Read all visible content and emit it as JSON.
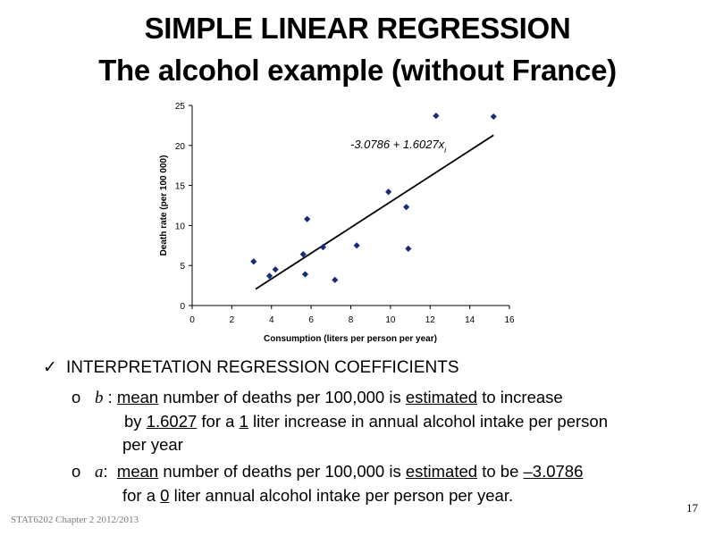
{
  "slide": {
    "title_line1": "SIMPLE LINEAR REGRESSION",
    "title_line2": "The alcohol example (without France)",
    "bullet_heading": "INTERPRETATION REGRESSION COEFFICIENTS",
    "item_b": {
      "marker": "o",
      "symbol": "b",
      "parts": [
        " : ",
        "mean",
        " number of deaths per 100,000 is ",
        "estimated",
        " to increase"
      ],
      "line2": [
        "by ",
        "1.6027",
        " for a ",
        "1",
        " liter increase in annual alcohol intake per person"
      ],
      "line3": "per year"
    },
    "item_a": {
      "marker": "o",
      "symbol": "a",
      "parts": [
        ":  ",
        "mean",
        " number of deaths per 100,000 is ",
        "estimated",
        " to be ",
        "–3.0786"
      ],
      "line2": [
        "for a ",
        "0",
        " liter annual alcohol intake per person per year."
      ]
    },
    "footer": "STAT6202 Chapter 2 2012/2013",
    "page_number": "17"
  },
  "chart_data": {
    "type": "scatter",
    "xlabel": "Consumption (liters per person per year)",
    "ylabel": "Death rate (per 100 000)",
    "xlim": [
      0,
      16
    ],
    "ylim": [
      0,
      25
    ],
    "xticks": [
      0,
      2,
      4,
      6,
      8,
      10,
      12,
      14,
      16
    ],
    "yticks": [
      0,
      5,
      10,
      15,
      20,
      25
    ],
    "grid": false,
    "marker_color": "#1a2a7a",
    "points": [
      {
        "x": 3.1,
        "y": 5.5
      },
      {
        "x": 3.9,
        "y": 3.7
      },
      {
        "x": 4.2,
        "y": 4.5
      },
      {
        "x": 5.6,
        "y": 6.4
      },
      {
        "x": 5.7,
        "y": 3.9
      },
      {
        "x": 5.8,
        "y": 10.8
      },
      {
        "x": 6.6,
        "y": 7.3
      },
      {
        "x": 7.2,
        "y": 3.2
      },
      {
        "x": 8.3,
        "y": 7.5
      },
      {
        "x": 9.9,
        "y": 14.2
      },
      {
        "x": 10.8,
        "y": 12.3
      },
      {
        "x": 10.9,
        "y": 7.1
      },
      {
        "x": 12.3,
        "y": 23.7
      },
      {
        "x": 15.2,
        "y": 23.6
      }
    ],
    "fit": {
      "intercept": -3.0786,
      "slope": 1.6027,
      "x_range": [
        3.2,
        15.2
      ]
    },
    "equation_label": "-3.0786 + 1.6027x"
  }
}
